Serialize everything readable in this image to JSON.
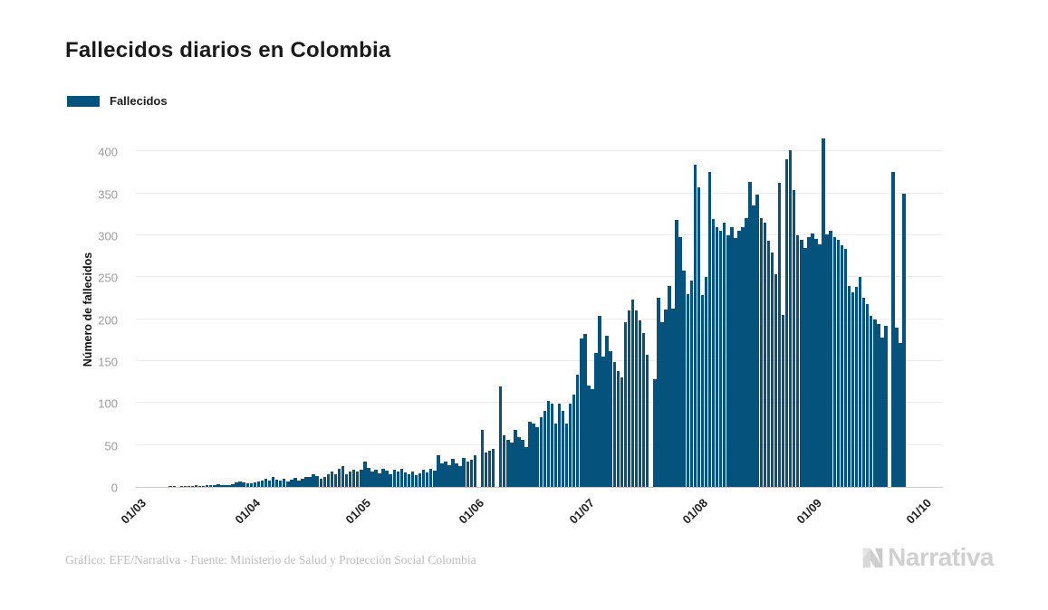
{
  "title": "Fallecidos diarios en Colombia",
  "legend": {
    "label": "Fallecidos",
    "color": "#05527D"
  },
  "footer": {
    "credit": "Gráfico: EFE/Narrativa - Fuente: Ministerio de Salud y Protección Social Colombia",
    "brand": "Narrativa"
  },
  "chart_data": {
    "type": "bar",
    "title": "Fallecidos diarios en Colombia",
    "series_name": "Fallecidos",
    "ylabel": "Número de fallecidos",
    "bar_color": "#05527D",
    "grid": true,
    "legend_position": "top-left",
    "x_start": "01/03",
    "x_tick_labels": [
      "01/03",
      "01/04",
      "01/05",
      "01/06",
      "01/07",
      "01/08",
      "01/09",
      "01/10"
    ],
    "x_tick_day_index": [
      0,
      31,
      61,
      92,
      122,
      153,
      184,
      214
    ],
    "x_domain_days": 220,
    "y_ticks": [
      0,
      50,
      100,
      150,
      200,
      250,
      300,
      350,
      400
    ],
    "ylim": [
      0,
      425
    ],
    "values": [
      0,
      0,
      0,
      0,
      0,
      0,
      0,
      0,
      0,
      1,
      1,
      0,
      1,
      1,
      1,
      1,
      2,
      1,
      1,
      2,
      2,
      2,
      3,
      2,
      2,
      2,
      3,
      5,
      6,
      5,
      4,
      4,
      5,
      6,
      8,
      10,
      8,
      12,
      9,
      8,
      10,
      7,
      9,
      11,
      8,
      10,
      12,
      12,
      15,
      13,
      10,
      12,
      15,
      18,
      15,
      22,
      25,
      15,
      18,
      20,
      18,
      20,
      30,
      23,
      18,
      20,
      16,
      22,
      19,
      15,
      20,
      18,
      22,
      17,
      15,
      18,
      14,
      16,
      20,
      17,
      22,
      19,
      38,
      28,
      30,
      26,
      33,
      28,
      25,
      35,
      30,
      32,
      38,
      0,
      68,
      41,
      43,
      45,
      0,
      120,
      62,
      56,
      53,
      68,
      59,
      56,
      47,
      78,
      76,
      71,
      83,
      91,
      103,
      99,
      76,
      99,
      91,
      76,
      99,
      110,
      134,
      177,
      182,
      121,
      116,
      160,
      204,
      155,
      180,
      162,
      149,
      138,
      130,
      196,
      210,
      223,
      210,
      199,
      183,
      157,
      0,
      128,
      225,
      196,
      211,
      240,
      212,
      318,
      298,
      258,
      230,
      246,
      384,
      357,
      229,
      250,
      375,
      319,
      310,
      305,
      315,
      300,
      310,
      297,
      305,
      310,
      320,
      364,
      335,
      348,
      320,
      315,
      293,
      279,
      253,
      362,
      205,
      390,
      401,
      354,
      300,
      295,
      285,
      298,
      302,
      296,
      289,
      415,
      301,
      305,
      298,
      295,
      288,
      284,
      240,
      232,
      238,
      250,
      225,
      218,
      204,
      200,
      194,
      178,
      192,
      0,
      375,
      190,
      172,
      350
    ]
  }
}
